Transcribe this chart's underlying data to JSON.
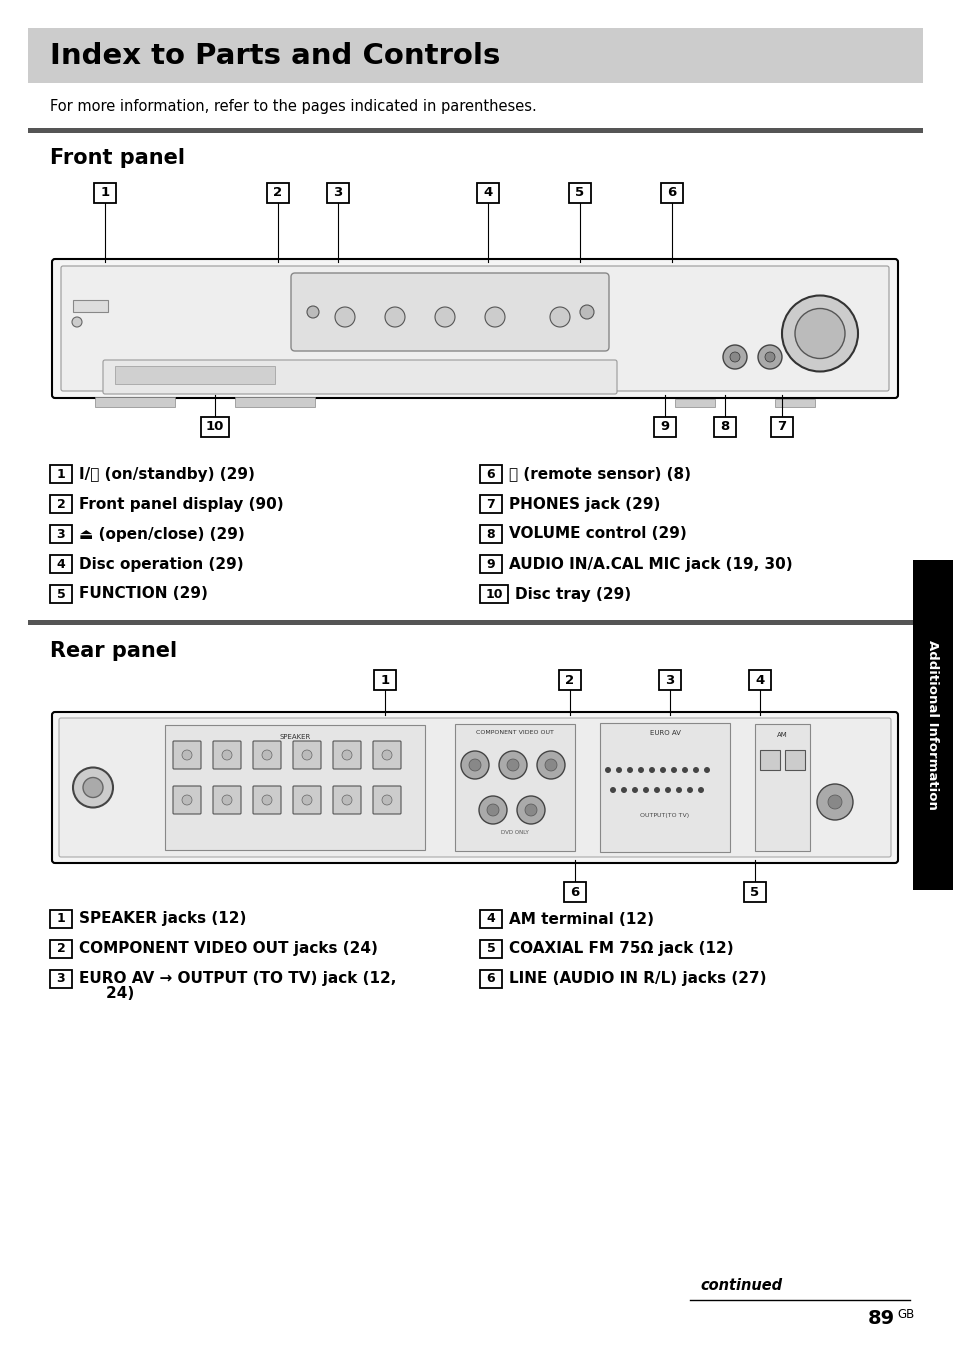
{
  "title": "Index to Parts and Controls",
  "title_bg": "#cccccc",
  "page_bg": "#ffffff",
  "intro_text": "For more information, refer to the pages indicated in parentheses.",
  "section1_title": "Front panel",
  "section2_title": "Rear panel",
  "front_items_left": [
    [
      "1",
      "I/⏻ (on/standby) (29)"
    ],
    [
      "2",
      "Front panel display (90)"
    ],
    [
      "3",
      "⏏ (open/close) (29)"
    ],
    [
      "4",
      "Disc operation (29)"
    ],
    [
      "5",
      "FUNCTION (29)"
    ]
  ],
  "front_items_right": [
    [
      "6",
      "Ｒ (remote sensor) (8)"
    ],
    [
      "7",
      "PHONES jack (29)"
    ],
    [
      "8",
      "VOLUME control (29)"
    ],
    [
      "9",
      "AUDIO IN/A.CAL MIC jack (19, 30)"
    ],
    [
      "10",
      "Disc tray (29)"
    ]
  ],
  "rear_items_left": [
    [
      "1",
      "SPEAKER jacks (12)"
    ],
    [
      "2",
      "COMPONENT VIDEO OUT jacks (24)"
    ],
    [
      "3",
      "EURO AV → OUTPUT (TO TV) jack (12,"
    ]
  ],
  "rear_items_left_cont": [
    "    24)"
  ],
  "rear_items_right": [
    [
      "4",
      "AM terminal (12)"
    ],
    [
      "5",
      "COAXIAL FM 75Ω jack (12)"
    ],
    [
      "6",
      "LINE (AUDIO IN R/L) jacks (27)"
    ]
  ],
  "sidebar_text": "Additional Information",
  "continued_text": "continued",
  "page_number": "89",
  "page_suffix": "GB",
  "divider_color": "#555555"
}
